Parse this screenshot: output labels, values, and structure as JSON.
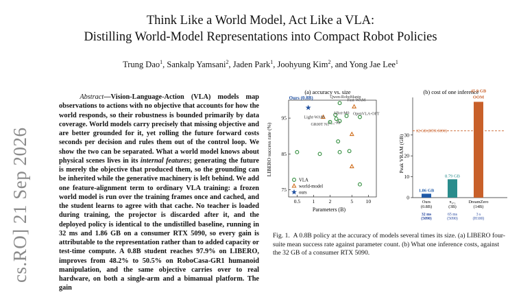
{
  "arxiv_stamp": "cs.RO] 21 Sep 2026",
  "title_line1": "Think Like a World Model, Act Like a VLA:",
  "title_line2": "Distilling World-Model Representations into Compact Robot Policies",
  "authors": [
    {
      "name": "Trung Dao",
      "aff": "1"
    },
    {
      "name": "Sankalp Yamsani",
      "aff": "2"
    },
    {
      "name": "Jaden Park",
      "aff": "1"
    },
    {
      "name": "Joohyung Kim",
      "aff": "2"
    },
    {
      "name": "Yong Jae Lee",
      "aff": "1"
    }
  ],
  "abstract_label": "Abstract",
  "abstract_bold": "Vision-Language-Action (VLA) models map observations to actions with no objective that accounts for how the world responds, so their robustness is bounded primarily by data coverage. World models carry precisely that missing objective and are better grounded for it, yet rolling the future forward costs seconds per decision and rules them out of the control loop. We show the two can be separated. What a world model knows about physical scenes lives in its ",
  "abstract_bold_italic": "internal features",
  "abstract_bold_2": "; generating the future is merely the objective that produced them, so the grounding can be inherited while the generative machinery is left behind. We add one feature-alignment term to ordinary VLA training: a frozen world model is run over the training frames once and cached, and the student learns to agree with that cache. No teacher is loaded during training, the projector is discarded after it, and the deployed policy is identical to the undistilled baseline, running in 32 ms and 1.86 GB on a consumer RTX 5090, so every gain is attributable to the representation rather than to added capacity or test-time compute. A 0.8B student reaches 97.9% on LIBERO, improves from 48.2% to 50.5% on RoboCasa-GR1 humanoid manipulation, and the same objective carries over to real hardware, on both a single-arm and a bimanual platform. The gain",
  "caption_fig": "Fig. 1.",
  "caption_text": "A 0.8B policy at the accuracy of models several times its size. (a) LIBERO four-suite mean success rate against parameter count. (b) What one inference costs, against the 32 GB of a consumer RTX 5090.",
  "chart_data": [
    {
      "type": "scatter",
      "title": "(a) accuracy vs. size",
      "xlabel": "Parameters (B)",
      "ylabel": "LIBERO success rate (%)",
      "x_scale": "log",
      "xlim": [
        0.35,
        14
      ],
      "ylim": [
        73,
        100
      ],
      "xticks": [
        "0.5",
        "1",
        "2",
        "5",
        "10"
      ],
      "yticks": [
        "75",
        "85",
        "95"
      ],
      "legend": [
        "VLA",
        "world-model",
        "ours"
      ],
      "legend_position": "bottom-left",
      "points": [
        {
          "label": "Ours (0.8B)",
          "x": 0.8,
          "y": 97.9,
          "series": "ours"
        },
        {
          "label": "Qwen-RoboManip",
          "x": 3.0,
          "y": 99.2,
          "series": "VLA"
        },
        {
          "label": "Fast-WAM",
          "x": 5.5,
          "y": 98.2,
          "series": "world-model"
        },
        {
          "label": "Light-WAM",
          "x": 1.5,
          "y": 95.3,
          "series": "world-model"
        },
        {
          "label": "ABot-M0",
          "x": 2.5,
          "y": 95.9,
          "series": "VLA"
        },
        {
          "label": "OpenVLA-OFT",
          "x": 7.0,
          "y": 95.3,
          "series": "VLA"
        },
        {
          "label": "π₀.₅-KI",
          "x": 3.0,
          "y": 94.2,
          "series": "VLA"
        },
        {
          "label": "GR00T N1",
          "x": 2.0,
          "y": 93.9,
          "series": "VLA"
        },
        {
          "label": "",
          "x": 2.6,
          "y": 94.8,
          "series": "VLA"
        },
        {
          "label": "",
          "x": 0.5,
          "y": 85.5,
          "series": "VLA"
        },
        {
          "label": "",
          "x": 1.3,
          "y": 85.0,
          "series": "VLA"
        },
        {
          "label": "",
          "x": 2.8,
          "y": 88.5,
          "series": "VLA"
        },
        {
          "label": "",
          "x": 3.0,
          "y": 85.5,
          "series": "VLA"
        },
        {
          "label": "",
          "x": 4.5,
          "y": 85.8,
          "series": "VLA"
        },
        {
          "label": "",
          "x": 5.0,
          "y": 81.5,
          "series": "world-model"
        },
        {
          "label": "",
          "x": 7.0,
          "y": 76.5,
          "series": "VLA"
        },
        {
          "label": "",
          "x": 5.0,
          "y": 90.5,
          "series": "world-model"
        },
        {
          "label": "",
          "x": 4.0,
          "y": 95.6,
          "series": "VLA"
        }
      ]
    },
    {
      "type": "bar",
      "title": "(b) cost of one inference",
      "ylabel": "Peak VRAM (GB)",
      "ylim": [
        0,
        48
      ],
      "yticks": [
        "0",
        "10",
        "20",
        "30"
      ],
      "reference_line": {
        "value": 32,
        "label": "32 GB (RTX 5090)"
      },
      "categories": [
        "Ours (0.8B)",
        "π₀.₅ (3B)",
        "DreamZero (14B)"
      ],
      "values": [
        1.86,
        8.79,
        45.9
      ],
      "value_labels": [
        "1.86 GB",
        "8.79 GB",
        "45.9 GB"
      ],
      "extra_label": "OOM",
      "latency_labels": [
        "32 ms (5090)",
        "65 ms (5090)",
        "3 s (H100)"
      ],
      "colors": [
        "#1f5aa8",
        "#2a8c8c",
        "#c8602a"
      ]
    }
  ]
}
